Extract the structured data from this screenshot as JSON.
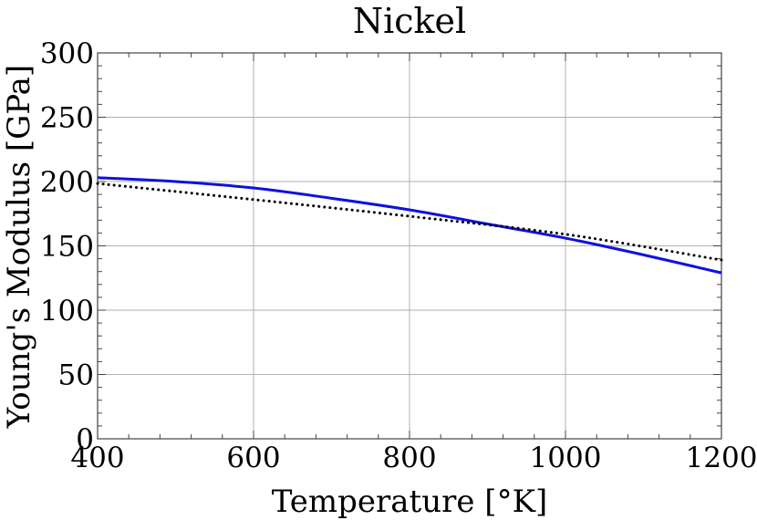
{
  "chart_data": {
    "type": "line",
    "title": "Nickel",
    "xlabel": "Temperature [°K]",
    "ylabel": "Young's Modulus [GPa]",
    "xlim": [
      400,
      1200
    ],
    "ylim": [
      0,
      300
    ],
    "xticks": [
      400,
      600,
      800,
      1000,
      1200
    ],
    "yticks": [
      0,
      50,
      100,
      150,
      200,
      250,
      300
    ],
    "xtick_labels": [
      "400",
      "600",
      "800",
      "1000",
      "1200"
    ],
    "ytick_labels": [
      "0",
      "50",
      "100",
      "150",
      "200",
      "250",
      "300"
    ],
    "grid": true,
    "series": [
      {
        "style": "solid",
        "color": "#1010e0",
        "x": [
          400,
          500,
          600,
          700,
          800,
          900,
          1000,
          1100,
          1200
        ],
        "y": [
          203,
          200,
          195,
          187,
          178,
          167,
          156,
          143,
          129
        ]
      },
      {
        "style": "dotted",
        "color": "#000000",
        "x": [
          400,
          600,
          800,
          1000,
          1200
        ],
        "y": [
          198.5,
          186,
          173,
          159,
          139
        ]
      }
    ]
  }
}
